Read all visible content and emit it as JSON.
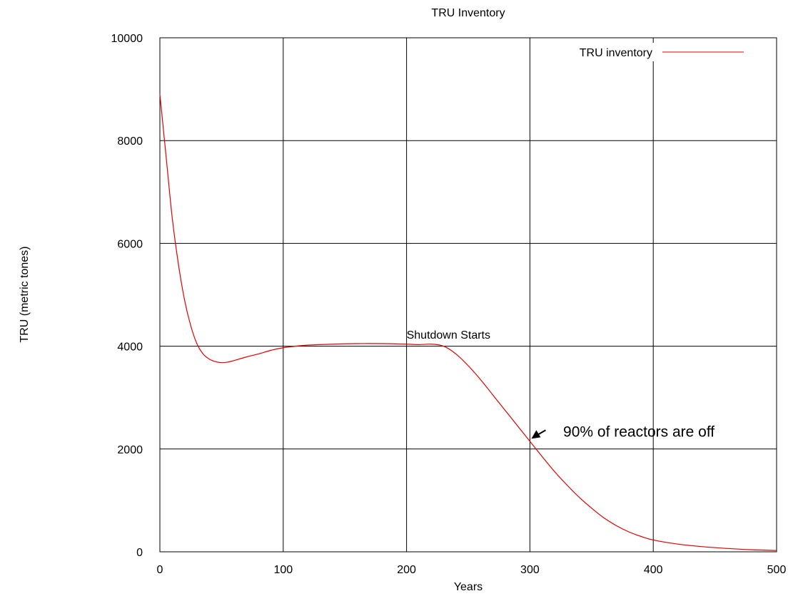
{
  "chart_data": {
    "type": "line",
    "title": "TRU Inventory",
    "xlabel": "Years",
    "ylabel": "TRU (metric tones)",
    "xlim": [
      0,
      500
    ],
    "ylim": [
      0,
      10000
    ],
    "x_ticks": [
      0,
      100,
      200,
      300,
      400,
      500
    ],
    "y_ticks": [
      0,
      2000,
      4000,
      6000,
      8000,
      10000
    ],
    "x_tick_labels": [
      "0",
      "100",
      "200",
      "300",
      "400",
      "500"
    ],
    "y_tick_labels": [
      "0",
      "2000",
      "4000",
      "6000",
      "8000",
      "10000"
    ],
    "grid": true,
    "legend_position": "top-right",
    "series": [
      {
        "name": "TRU inventory",
        "color": "#e00000",
        "x": [
          0,
          5,
          10,
          15,
          20,
          25,
          30,
          35,
          40,
          45,
          50,
          55,
          60,
          70,
          80,
          90,
          100,
          110,
          120,
          140,
          160,
          180,
          200,
          210,
          220,
          230,
          240,
          250,
          260,
          270,
          280,
          290,
          300,
          310,
          320,
          330,
          340,
          350,
          360,
          370,
          380,
          390,
          400,
          420,
          440,
          460,
          480,
          500
        ],
        "y": [
          8900,
          7700,
          6500,
          5600,
          4900,
          4400,
          4050,
          3850,
          3750,
          3700,
          3680,
          3690,
          3720,
          3790,
          3850,
          3920,
          3970,
          4000,
          4020,
          4040,
          4050,
          4050,
          4040,
          4030,
          4040,
          4000,
          3850,
          3620,
          3350,
          3050,
          2750,
          2450,
          2150,
          1850,
          1560,
          1300,
          1060,
          850,
          660,
          510,
          390,
          300,
          230,
          150,
          100,
          65,
          40,
          25
        ]
      }
    ],
    "annotations": [
      {
        "text": "Shutdown Starts",
        "x": 200,
        "y": 4150
      },
      {
        "text": "90% of reactors are off",
        "x": 327,
        "y": 2350,
        "arrow_to": [
          300,
          2200
        ]
      }
    ]
  }
}
